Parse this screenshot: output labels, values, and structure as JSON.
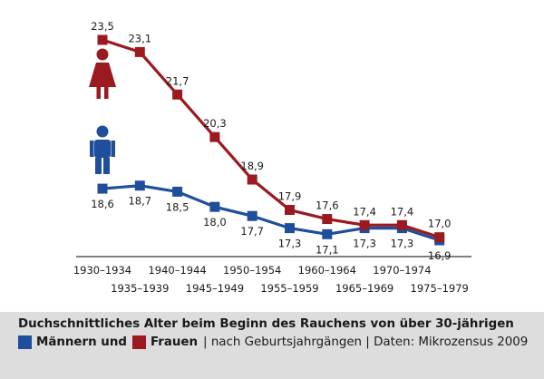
{
  "chart_data": {
    "type": "line",
    "categories": [
      "1930–1934",
      "1935–1939",
      "1940–1944",
      "1945–1949",
      "1950–1954",
      "1955–1959",
      "1960–1964",
      "1965–1969",
      "1970–1974",
      "1975–1979"
    ],
    "series": [
      {
        "name": "Frauen",
        "color": "#9b1a1f",
        "values": [
          23.5,
          23.1,
          21.7,
          20.3,
          18.9,
          17.9,
          17.6,
          17.4,
          17.4,
          17.0
        ],
        "labels": [
          "23,5",
          "23,1",
          "21,7",
          "20,3",
          "18,9",
          "17,9",
          "17,6",
          "17,4",
          "17,4",
          "17,0"
        ]
      },
      {
        "name": "Männern",
        "color": "#1f4e9c",
        "values": [
          18.6,
          18.7,
          18.5,
          18.0,
          17.7,
          17.3,
          17.1,
          17.3,
          17.3,
          16.9
        ],
        "labels": [
          "18,6",
          "18,7",
          "18,5",
          "18,0",
          "17,7",
          "17,3",
          "17,1",
          "17,3",
          "17,3",
          "16,9"
        ]
      }
    ],
    "icons": [
      "female-person-icon",
      "male-person-icon"
    ]
  },
  "caption": {
    "title": "Duchschnittliches Alter beim Beginn des Rauchens von über 30-jährigen",
    "maenner_label": "Männern und",
    "frauen_label": "Frauen",
    "rest": "| nach Geburtsjahrgängen | Daten: Mikrozensus 2009"
  }
}
